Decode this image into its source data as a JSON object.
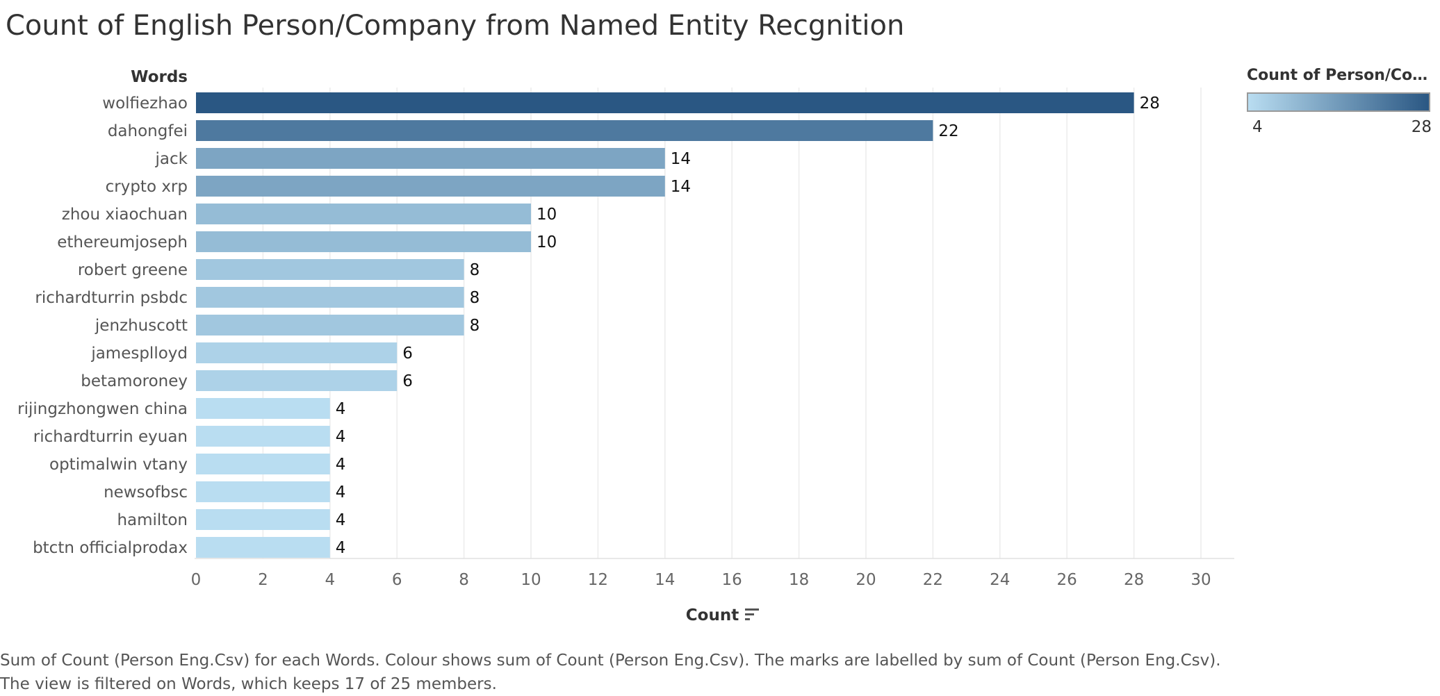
{
  "title": "Count of English Person/Company from Named Entity Recgnition",
  "legend": {
    "title": "Count of Person/Compa..",
    "min_label": "4",
    "max_label": "28",
    "color_low": "#b9ddf1",
    "color_high": "#2a5783"
  },
  "caption": "Sum of Count (Person Eng.Csv) for each  Words.  Colour shows sum of Count (Person Eng.Csv).  The marks are labelled by sum of Count (Person Eng.Csv). The view is filtered on  Words, which keeps 17 of 25 members.",
  "chart_data": {
    "type": "bar",
    "orientation": "horizontal",
    "ylabel": "Words",
    "xlabel": "Count",
    "xlim": [
      0,
      30
    ],
    "x_ticks": [
      "0",
      "2",
      "4",
      "6",
      "8",
      "10",
      "12",
      "14",
      "16",
      "18",
      "20",
      "22",
      "24",
      "26",
      "28",
      "30"
    ],
    "grid": true,
    "legend_position": "top-right",
    "categories": [
      "wolfiezhao",
      "dahongfei",
      "jack",
      "crypto xrp",
      "zhou xiaochuan",
      "ethereumjoseph",
      "robert greene",
      "richardturrin psbdc",
      "jenzhuscott",
      "jamesplloyd",
      "betamoroney",
      "rijingzhongwen china",
      "richardturrin eyuan",
      "optimalwin vtany",
      "newsofbsc",
      "hamilton",
      "btctn officialprodax"
    ],
    "values": [
      28,
      22,
      14,
      14,
      10,
      10,
      8,
      8,
      8,
      6,
      6,
      4,
      4,
      4,
      4,
      4,
      4
    ]
  }
}
